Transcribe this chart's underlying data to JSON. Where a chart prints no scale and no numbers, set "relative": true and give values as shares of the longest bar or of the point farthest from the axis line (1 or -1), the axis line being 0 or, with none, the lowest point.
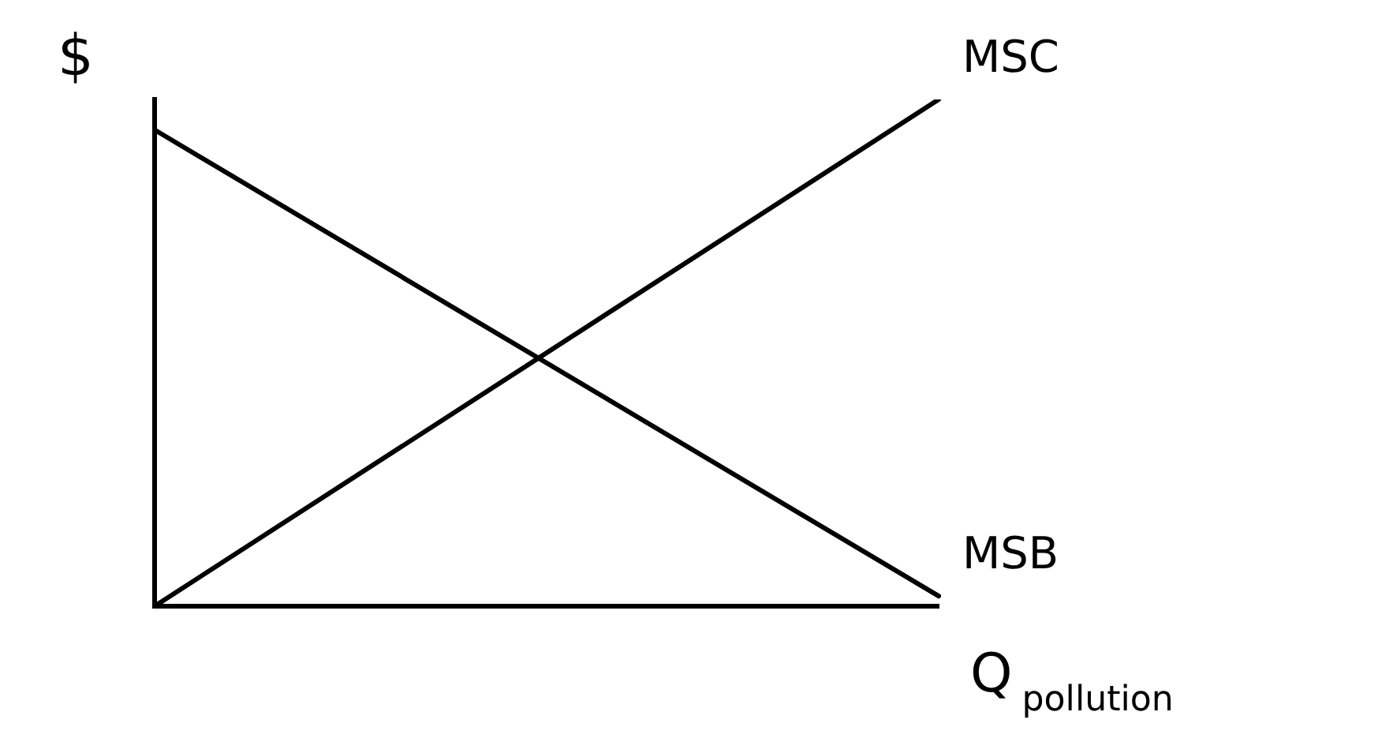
{
  "chart_data": {
    "type": "line",
    "relative": true,
    "ylabel": "$",
    "xlabel": "Q$_{pollution}$",
    "categories": [
      null,
      null
    ],
    "legend": false,
    "grid": false,
    "marker": "none",
    "series": [
      {
        "name": "MSC",
        "color": "#000000",
        "values": [
          0,
          1
        ]
      },
      {
        "name": "MSB",
        "color": "#000000",
        "values": [
          0.94,
          0.02
        ]
      }
    ]
  }
}
